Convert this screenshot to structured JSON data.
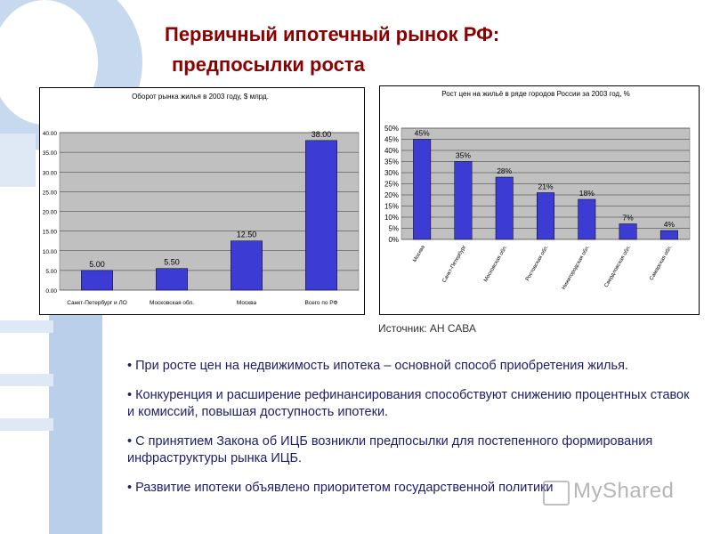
{
  "slide": {
    "title_line1": "Первичный ипотечный рынок РФ:",
    "title_line2": "предпосылки роста",
    "source": "Источник: АН САВА",
    "bullets": [
      "• При росте цен на недвижимость ипотека – основной способ приобретения жилья.",
      "• Конкуренция и расширение рефинансирования способствуют снижению процентных ставок и комиссий, повышая доступность ипотеки.",
      "• С принятием Закона об ИЦБ возникли предпосылки для постепенного формирования инфраструктуры рынка ИЦБ.",
      "• Развитие ипотеки объявлено приоритетом государственной политики"
    ],
    "watermark": "MyShared",
    "colors": {
      "title": "#8b0000",
      "text": "#1b1e6b",
      "deco": "#b9cfea",
      "bar": "#3c3cd4",
      "plot_bg": "#c0c0c0"
    }
  },
  "chart_data": [
    {
      "type": "bar",
      "title": "Оборот рынка жилья в 2003 году, $ млрд.",
      "categories": [
        "Санкт-Петербург и ЛО",
        "Московская обл.",
        "Москва",
        "Всего по РФ"
      ],
      "values": [
        5.0,
        5.5,
        12.5,
        38.0
      ],
      "data_labels": [
        "5.00",
        "5.50",
        "12.50",
        "38.00"
      ],
      "ylim": [
        0,
        40
      ],
      "yticks": [
        "0.00",
        "5.00",
        "10.00",
        "15.00",
        "20.00",
        "25.00",
        "30.00",
        "35.00",
        "40.00"
      ],
      "grid": true,
      "xlabel": "",
      "ylabel": ""
    },
    {
      "type": "bar",
      "title": "Рост цен на жильё в ряде городов России за 2003 год, %",
      "categories": [
        "Москва",
        "Санкт-Петербург",
        "Московская обл.",
        "Ростовская обл.",
        "Нижегородская обл.",
        "Свердловская обл.",
        "Самарская обл."
      ],
      "values": [
        45,
        35,
        28,
        21,
        18,
        7,
        4
      ],
      "data_labels": [
        "45%",
        "35%",
        "28%",
        "21%",
        "18%",
        "7%",
        "4%"
      ],
      "ylim": [
        0,
        50
      ],
      "yticks": [
        "0%",
        "5%",
        "10%",
        "15%",
        "20%",
        "25%",
        "30%",
        "35%",
        "40%",
        "45%",
        "50%"
      ],
      "grid": true,
      "xlabel": "",
      "ylabel": ""
    }
  ]
}
